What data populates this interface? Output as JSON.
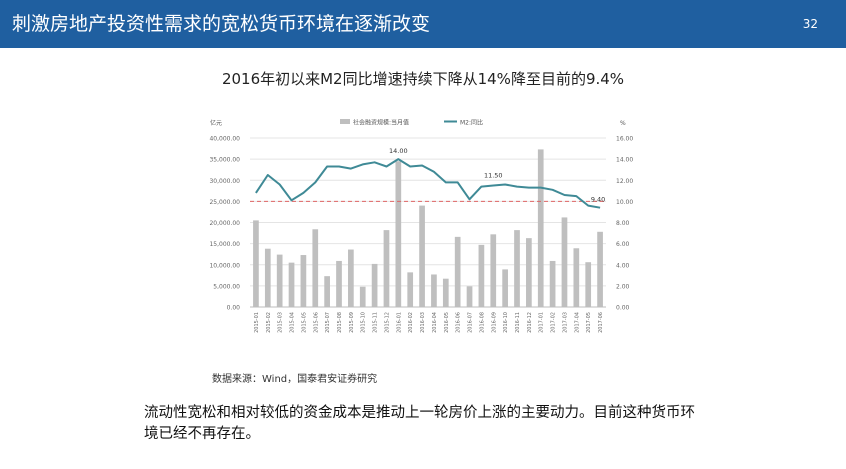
{
  "header": {
    "title": "刺激房地产投资性需求的宽松货币环境在逐渐改变",
    "page_number": "32",
    "color": "#1f5fa0"
  },
  "chart_data": {
    "type": "bar",
    "title": "2016年初以来M2同比增速持续下降从14%降至目前的9.4%",
    "left_axis_unit": "亿元",
    "right_axis_unit": "%",
    "left_ylim": [
      0,
      40000
    ],
    "right_ylim": [
      0,
      16
    ],
    "left_ticks": [
      "0.00",
      "5,000.00",
      "10,000.00",
      "15,000.00",
      "20,000.00",
      "25,000.00",
      "30,000.00",
      "35,000.00",
      "40,000.00"
    ],
    "right_ticks": [
      "0.00",
      "2.00",
      "4.00",
      "6.00",
      "8.00",
      "10.00",
      "12.00",
      "14.00",
      "16.00"
    ],
    "categories": [
      "2015-01",
      "2015-02",
      "2015-03",
      "2015-04",
      "2015-05",
      "2015-06",
      "2015-07",
      "2015-08",
      "2015-09",
      "2015-10",
      "2015-11",
      "2015-12",
      "2016-01",
      "2016-02",
      "2016-03",
      "2016-04",
      "2016-05",
      "2016-06",
      "2016-07",
      "2016-08",
      "2016-09",
      "2016-10",
      "2016-11",
      "2016-12",
      "2017-01",
      "2017-02",
      "2017-03",
      "2017-04",
      "2017-05",
      "2017-06"
    ],
    "legend_position": "top",
    "grid": true,
    "series": [
      {
        "name": "社会融资规模:当月值",
        "type": "bar",
        "axis": "left",
        "color": "#bfbfbf",
        "values": [
          20500,
          13800,
          12400,
          10500,
          12300,
          18400,
          7300,
          10900,
          13600,
          4800,
          10200,
          18200,
          34500,
          8200,
          24000,
          7700,
          6700,
          16600,
          4900,
          14700,
          17200,
          8900,
          18200,
          16300,
          37300,
          10900,
          21200,
          13900,
          10600,
          17800
        ]
      },
      {
        "name": "M2:同比",
        "type": "line",
        "axis": "right",
        "color": "#3f8a96",
        "values": [
          10.8,
          12.5,
          11.6,
          10.1,
          10.8,
          11.8,
          13.3,
          13.3,
          13.1,
          13.5,
          13.7,
          13.3,
          14.0,
          13.3,
          13.4,
          12.8,
          11.8,
          11.8,
          10.2,
          11.4,
          11.5,
          11.6,
          11.4,
          11.3,
          11.3,
          11.1,
          10.6,
          10.5,
          9.6,
          9.4
        ]
      }
    ],
    "reference_line": {
      "value": 10.0,
      "axis": "right",
      "color": "#e06666",
      "style": "dashed"
    },
    "annotations": [
      {
        "text": "14.00",
        "index": 12,
        "value": 14.0
      },
      {
        "text": "11.50",
        "index": 20,
        "value": 11.5
      },
      {
        "text": "9.40",
        "index": 29,
        "value": 9.4
      }
    ]
  },
  "source_note": "数据来源：Wind，国泰君安证券研究",
  "body_text": "流动性宽松和相对较低的资金成本是推动上一轮房价上涨的主要动力。目前这种货币环境已经不再存在。"
}
